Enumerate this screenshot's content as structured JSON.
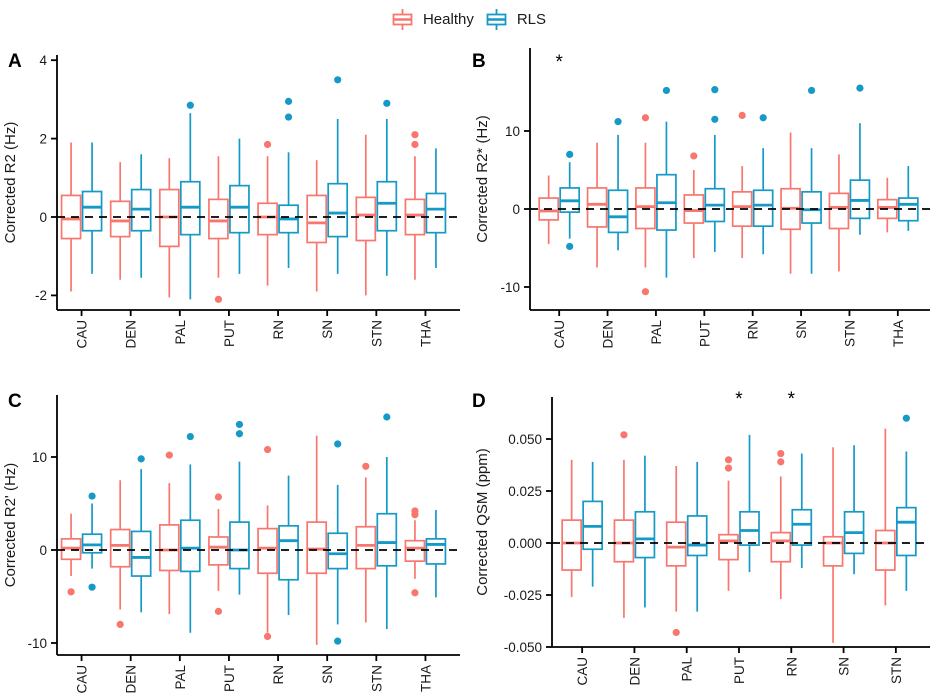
{
  "figure_title": "Corrected relaxometry and QSM boxplots by brain region, Healthy vs RLS",
  "legend": {
    "items": [
      {
        "label": "Healthy",
        "color_key": "healthy"
      },
      {
        "label": "RLS",
        "color_key": "rls"
      }
    ]
  },
  "colors": {
    "healthy": "#F8766D",
    "rls": "#1599C6",
    "axis": "#000000",
    "dashed_line": "#000000",
    "text": "#1a1a1a"
  },
  "chart_data": [
    {
      "type": "boxplot",
      "panel": "A",
      "ylabel": "Corrected R2 (Hz)",
      "yticks": [
        {
          "v": 4,
          "label": "4"
        },
        {
          "v": 2,
          "label": "2"
        },
        {
          "v": 0,
          "label": "0"
        },
        {
          "v": -2,
          "label": "-2"
        }
      ],
      "zero_reference_line": 0,
      "categories": [
        "CAU",
        "DEN",
        "PAL",
        "PUT",
        "RN",
        "SN",
        "STN",
        "THA"
      ],
      "significance": [],
      "series": [
        {
          "name": "Healthy",
          "boxes": [
            {
              "lo": -1.9,
              "q1": -0.55,
              "med": -0.05,
              "q3": 0.55,
              "hi": 1.9,
              "out": []
            },
            {
              "lo": -1.6,
              "q1": -0.5,
              "med": -0.1,
              "q3": 0.4,
              "hi": 1.4,
              "out": []
            },
            {
              "lo": -2.05,
              "q1": -0.75,
              "med": 0.0,
              "q3": 0.7,
              "hi": 1.5,
              "out": []
            },
            {
              "lo": -1.55,
              "q1": -0.55,
              "med": -0.1,
              "q3": 0.45,
              "hi": 1.55,
              "out": [
                -2.1
              ]
            },
            {
              "lo": -1.75,
              "q1": -0.45,
              "med": 0.0,
              "q3": 0.35,
              "hi": 1.55,
              "out": [
                1.85
              ]
            },
            {
              "lo": -1.9,
              "q1": -0.65,
              "med": -0.15,
              "q3": 0.55,
              "hi": 1.45,
              "out": []
            },
            {
              "lo": -2.0,
              "q1": -0.6,
              "med": 0.05,
              "q3": 0.5,
              "hi": 2.1,
              "out": []
            },
            {
              "lo": -1.6,
              "q1": -0.45,
              "med": 0.05,
              "q3": 0.45,
              "hi": 1.55,
              "out": [
                2.1,
                1.85
              ]
            }
          ]
        },
        {
          "name": "RLS",
          "boxes": [
            {
              "lo": -1.45,
              "q1": -0.35,
              "med": 0.25,
              "q3": 0.65,
              "hi": 1.9,
              "out": []
            },
            {
              "lo": -1.55,
              "q1": -0.35,
              "med": 0.2,
              "q3": 0.7,
              "hi": 1.6,
              "out": []
            },
            {
              "lo": -2.1,
              "q1": -0.45,
              "med": 0.25,
              "q3": 0.9,
              "hi": 2.65,
              "out": [
                2.85
              ]
            },
            {
              "lo": -1.45,
              "q1": -0.4,
              "med": 0.25,
              "q3": 0.8,
              "hi": 2.0,
              "out": []
            },
            {
              "lo": -1.3,
              "q1": -0.4,
              "med": -0.05,
              "q3": 0.3,
              "hi": 1.65,
              "out": [
                2.95,
                2.55
              ]
            },
            {
              "lo": -1.45,
              "q1": -0.5,
              "med": 0.1,
              "q3": 0.85,
              "hi": 2.5,
              "out": [
                3.5
              ]
            },
            {
              "lo": -1.5,
              "q1": -0.35,
              "med": 0.35,
              "q3": 0.9,
              "hi": 2.5,
              "out": [
                2.9
              ]
            },
            {
              "lo": -1.3,
              "q1": -0.4,
              "med": 0.2,
              "q3": 0.6,
              "hi": 1.75,
              "out": []
            }
          ]
        }
      ]
    },
    {
      "type": "boxplot",
      "panel": "B",
      "ylabel": "Corrected R2* (Hz)",
      "yticks": [
        {
          "v": 10,
          "label": "10"
        },
        {
          "v": 0,
          "label": "0"
        },
        {
          "v": -10,
          "label": "-10"
        }
      ],
      "zero_reference_line": 0,
      "categories": [
        "CAU",
        "DEN",
        "PAL",
        "PUT",
        "RN",
        "SN",
        "STN",
        "THA"
      ],
      "significance": [
        {
          "category": "CAU",
          "symbol": "*"
        }
      ],
      "series": [
        {
          "name": "Healthy",
          "boxes": [
            {
              "lo": -4.5,
              "q1": -1.4,
              "med": -0.25,
              "q3": 1.4,
              "hi": 4.3,
              "out": []
            },
            {
              "lo": -7.5,
              "q1": -2.3,
              "med": 0.6,
              "q3": 2.7,
              "hi": 8.5,
              "out": []
            },
            {
              "lo": -7.5,
              "q1": -2.5,
              "med": 0.3,
              "q3": 2.7,
              "hi": 8.5,
              "out": [
                11.7,
                -10.6
              ]
            },
            {
              "lo": -6.3,
              "q1": -1.8,
              "med": -0.2,
              "q3": 1.8,
              "hi": 5.0,
              "out": [
                6.8
              ]
            },
            {
              "lo": -6.3,
              "q1": -2.2,
              "med": 0.3,
              "q3": 2.2,
              "hi": 5.5,
              "out": [
                12.0
              ]
            },
            {
              "lo": -8.3,
              "q1": -2.6,
              "med": 0.1,
              "q3": 2.6,
              "hi": 9.8,
              "out": []
            },
            {
              "lo": -8.0,
              "q1": -2.5,
              "med": 0.2,
              "q3": 2.0,
              "hi": 7.0,
              "out": []
            },
            {
              "lo": -3.0,
              "q1": -1.2,
              "med": 0.2,
              "q3": 1.2,
              "hi": 4.0,
              "out": []
            }
          ]
        },
        {
          "name": "RLS",
          "boxes": [
            {
              "lo": -3.8,
              "q1": -0.4,
              "med": 1.05,
              "q3": 2.7,
              "hi": 6.0,
              "out": [
                7.0,
                -4.8
              ]
            },
            {
              "lo": -5.3,
              "q1": -3.0,
              "med": -1.0,
              "q3": 2.4,
              "hi": 9.5,
              "out": [
                11.2
              ]
            },
            {
              "lo": -8.8,
              "q1": -2.7,
              "med": 0.8,
              "q3": 4.4,
              "hi": 11.2,
              "out": [
                15.2
              ]
            },
            {
              "lo": -5.5,
              "q1": -1.6,
              "med": 0.5,
              "q3": 2.6,
              "hi": 9.5,
              "out": [
                15.3,
                11.5
              ]
            },
            {
              "lo": -5.8,
              "q1": -2.2,
              "med": 0.5,
              "q3": 2.4,
              "hi": 7.8,
              "out": [
                11.7
              ]
            },
            {
              "lo": -8.3,
              "q1": -1.8,
              "med": -0.1,
              "q3": 2.2,
              "hi": 7.8,
              "out": [
                15.2
              ]
            },
            {
              "lo": -3.3,
              "q1": -1.2,
              "med": 1.1,
              "q3": 3.7,
              "hi": 11.0,
              "out": [
                15.5
              ]
            },
            {
              "lo": -2.8,
              "q1": -1.5,
              "med": 0.6,
              "q3": 1.4,
              "hi": 5.5,
              "out": []
            }
          ]
        }
      ]
    },
    {
      "type": "boxplot",
      "panel": "C",
      "ylabel": "Corrected R2' (Hz)",
      "yticks": [
        {
          "v": 10,
          "label": "10"
        },
        {
          "v": 0,
          "label": "0"
        },
        {
          "v": -10,
          "label": "-10"
        }
      ],
      "zero_reference_line": 0,
      "categories": [
        "CAU",
        "DEN",
        "PAL",
        "PUT",
        "RN",
        "SN",
        "STN",
        "THA"
      ],
      "significance": [],
      "series": [
        {
          "name": "Healthy",
          "boxes": [
            {
              "lo": -2.8,
              "q1": -1.0,
              "med": 0.2,
              "q3": 1.2,
              "hi": 3.9,
              "out": [
                -4.5
              ]
            },
            {
              "lo": -6.4,
              "q1": -1.8,
              "med": 0.5,
              "q3": 2.2,
              "hi": 7.5,
              "out": [
                -8.0
              ]
            },
            {
              "lo": -6.9,
              "q1": -2.2,
              "med": 0.0,
              "q3": 2.7,
              "hi": 7.2,
              "out": [
                10.2
              ]
            },
            {
              "lo": -4.4,
              "q1": -1.6,
              "med": 0.3,
              "q3": 1.4,
              "hi": 4.4,
              "out": [
                5.7,
                -6.6
              ]
            },
            {
              "lo": -8.9,
              "q1": -2.5,
              "med": 0.2,
              "q3": 2.3,
              "hi": 4.8,
              "out": [
                10.8,
                -9.3
              ]
            },
            {
              "lo": -10.2,
              "q1": -2.5,
              "med": 0.1,
              "q3": 3.0,
              "hi": 12.3,
              "out": []
            },
            {
              "lo": -7.8,
              "q1": -2.0,
              "med": 0.5,
              "q3": 2.5,
              "hi": 7.8,
              "out": [
                9.0
              ]
            },
            {
              "lo": -3.1,
              "q1": -1.2,
              "med": 0.2,
              "q3": 1.0,
              "hi": 3.2,
              "out": [
                4.2,
                3.8,
                -4.6
              ]
            }
          ]
        },
        {
          "name": "RLS",
          "boxes": [
            {
              "lo": -2.0,
              "q1": -0.3,
              "med": 0.55,
              "q3": 1.7,
              "hi": 5.0,
              "out": [
                5.8,
                -4.0
              ]
            },
            {
              "lo": -6.7,
              "q1": -2.8,
              "med": -0.8,
              "q3": 2.0,
              "hi": 8.7,
              "out": [
                9.8
              ]
            },
            {
              "lo": -8.9,
              "q1": -2.3,
              "med": 0.2,
              "q3": 3.2,
              "hi": 9.2,
              "out": [
                12.2
              ]
            },
            {
              "lo": -4.8,
              "q1": -2.0,
              "med": 0.0,
              "q3": 3.0,
              "hi": 9.5,
              "out": [
                13.5,
                12.5
              ]
            },
            {
              "lo": -7.0,
              "q1": -3.2,
              "med": 1.0,
              "q3": 2.6,
              "hi": 8.0,
              "out": []
            },
            {
              "lo": -8.0,
              "q1": -2.0,
              "med": -0.4,
              "q3": 1.8,
              "hi": 7.0,
              "out": [
                11.4,
                -9.8
              ]
            },
            {
              "lo": -8.5,
              "q1": -1.7,
              "med": 0.8,
              "q3": 3.9,
              "hi": 10.0,
              "out": [
                14.3
              ]
            },
            {
              "lo": -5.1,
              "q1": -1.5,
              "med": 0.6,
              "q3": 1.2,
              "hi": 4.3,
              "out": []
            }
          ]
        }
      ]
    },
    {
      "type": "boxplot",
      "panel": "D",
      "ylabel": "Corrected QSM (ppm)",
      "yticks": [
        {
          "v": 0.05,
          "label": "0.050"
        },
        {
          "v": 0.025,
          "label": "0.025"
        },
        {
          "v": 0.0,
          "label": "0.000"
        },
        {
          "v": -0.025,
          "label": "-0.025"
        },
        {
          "v": -0.05,
          "label": "-0.050"
        }
      ],
      "zero_reference_line": 0,
      "categories": [
        "CAU",
        "DEN",
        "PAL",
        "PUT",
        "RN",
        "SN",
        "STN"
      ],
      "significance": [
        {
          "category": "PUT",
          "symbol": "*"
        },
        {
          "category": "RN",
          "symbol": "*"
        }
      ],
      "series": [
        {
          "name": "Healthy",
          "boxes": [
            {
              "lo": -0.026,
              "q1": -0.013,
              "med": 0.0,
              "q3": 0.011,
              "hi": 0.04,
              "out": []
            },
            {
              "lo": -0.036,
              "q1": -0.009,
              "med": 0.0,
              "q3": 0.011,
              "hi": 0.04,
              "out": [
                0.052
              ]
            },
            {
              "lo": -0.033,
              "q1": -0.011,
              "med": -0.002,
              "q3": 0.01,
              "hi": 0.037,
              "out": [
                -0.043
              ]
            },
            {
              "lo": -0.023,
              "q1": -0.008,
              "med": 0.001,
              "q3": 0.004,
              "hi": 0.03,
              "out": [
                0.04,
                0.036
              ]
            },
            {
              "lo": -0.027,
              "q1": -0.009,
              "med": 0.001,
              "q3": 0.005,
              "hi": 0.032,
              "out": [
                0.043,
                0.039
              ]
            },
            {
              "lo": -0.048,
              "q1": -0.011,
              "med": 0.0,
              "q3": 0.003,
              "hi": 0.046,
              "out": []
            },
            {
              "lo": -0.03,
              "q1": -0.013,
              "med": 0.0,
              "q3": 0.006,
              "hi": 0.055,
              "out": []
            }
          ]
        },
        {
          "name": "RLS",
          "boxes": [
            {
              "lo": -0.021,
              "q1": -0.003,
              "med": 0.008,
              "q3": 0.02,
              "hi": 0.039,
              "out": []
            },
            {
              "lo": -0.031,
              "q1": -0.007,
              "med": 0.002,
              "q3": 0.015,
              "hi": 0.042,
              "out": []
            },
            {
              "lo": -0.033,
              "q1": -0.006,
              "med": -0.001,
              "q3": 0.013,
              "hi": 0.039,
              "out": []
            },
            {
              "lo": -0.014,
              "q1": -0.001,
              "med": 0.006,
              "q3": 0.015,
              "hi": 0.052,
              "out": []
            },
            {
              "lo": -0.012,
              "q1": -0.001,
              "med": 0.009,
              "q3": 0.016,
              "hi": 0.043,
              "out": []
            },
            {
              "lo": -0.015,
              "q1": -0.005,
              "med": 0.005,
              "q3": 0.015,
              "hi": 0.047,
              "out": []
            },
            {
              "lo": -0.023,
              "q1": -0.006,
              "med": 0.01,
              "q3": 0.017,
              "hi": 0.044,
              "out": [
                0.06
              ]
            }
          ]
        }
      ]
    }
  ]
}
